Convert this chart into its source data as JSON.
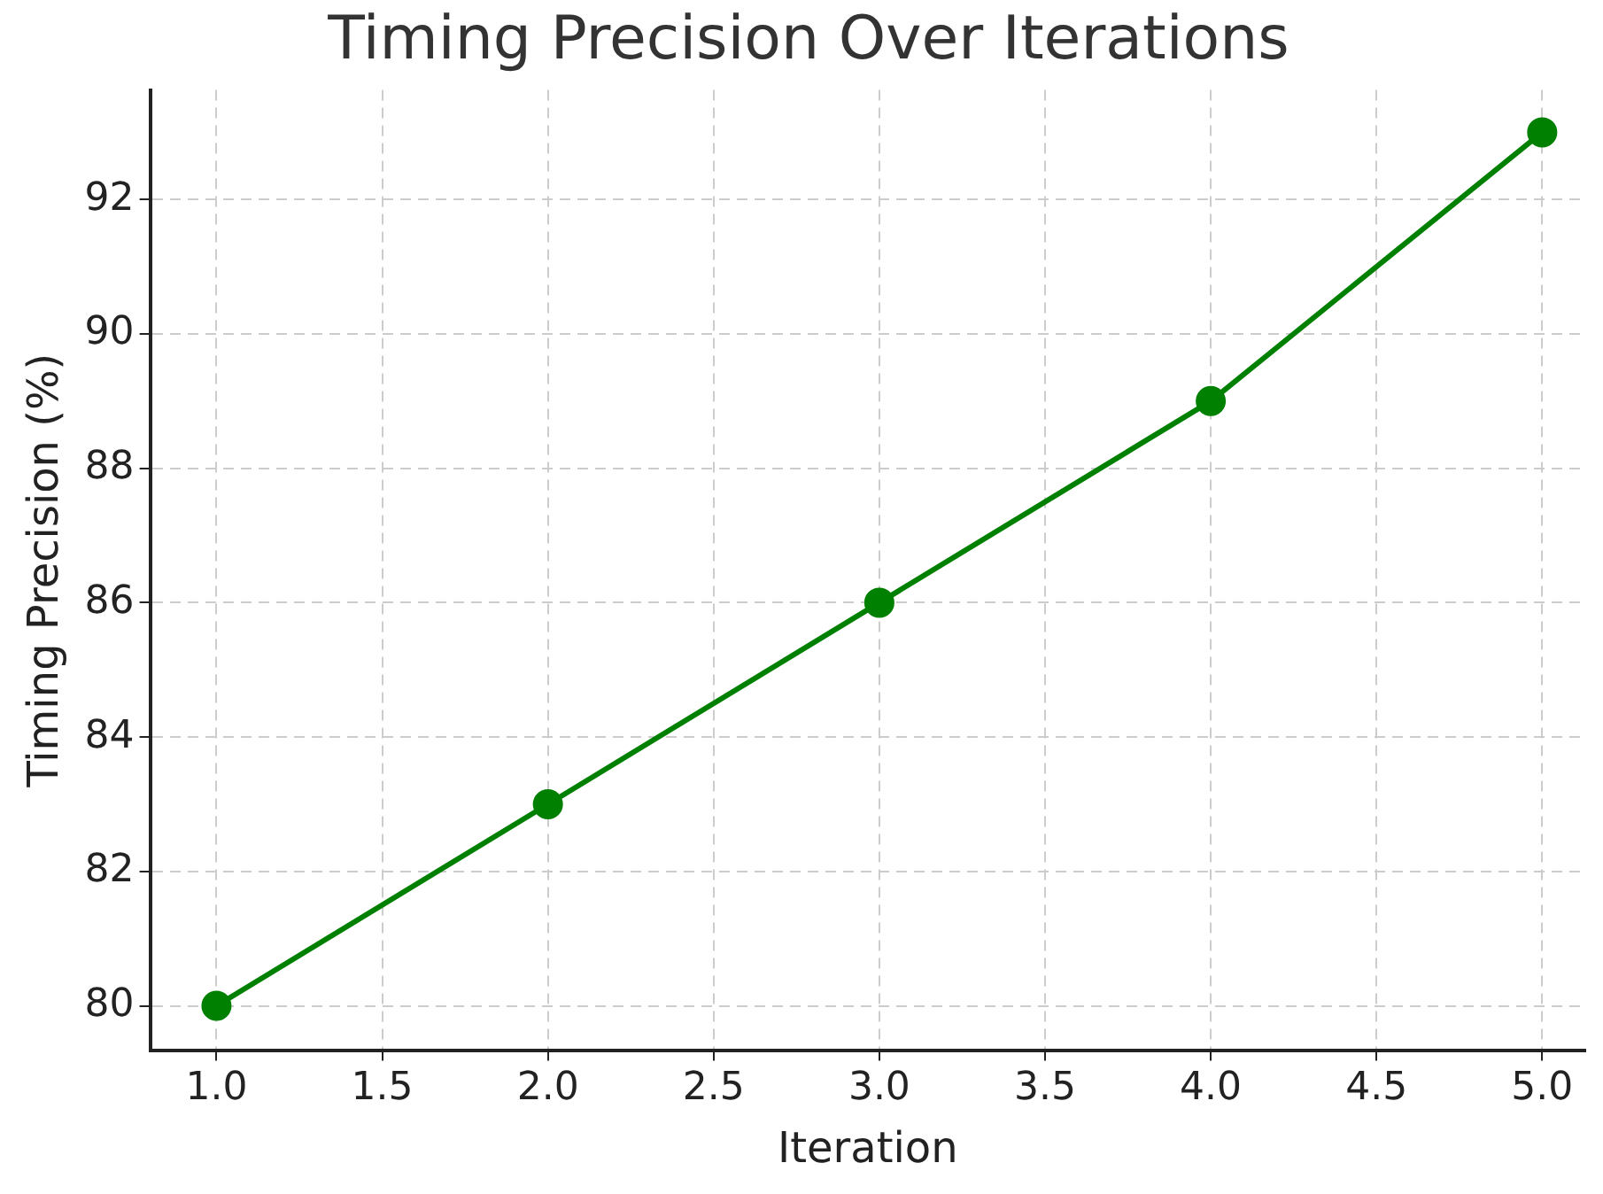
{
  "chart_data": {
    "type": "line",
    "title": "Timing Precision Over Iterations",
    "xlabel": "Iteration",
    "ylabel": "Timing Precision (%)",
    "x": [
      1,
      2,
      3,
      4,
      5
    ],
    "series": [
      {
        "color": "#008000",
        "values": [
          80,
          83,
          86,
          89,
          93
        ]
      }
    ],
    "xlim": [
      0.8,
      5.13
    ],
    "ylim": [
      79.34,
      93.63
    ],
    "xticks": [
      {
        "value": 1,
        "label": "1.0"
      },
      {
        "value": 1.5,
        "label": "1.5"
      },
      {
        "value": 2,
        "label": "2.0"
      },
      {
        "value": 2.5,
        "label": "2.5"
      },
      {
        "value": 3,
        "label": "3.0"
      },
      {
        "value": 3.5,
        "label": "3.5"
      },
      {
        "value": 4,
        "label": "4.0"
      },
      {
        "value": 4.5,
        "label": "4.5"
      },
      {
        "value": 5,
        "label": "5.0"
      }
    ],
    "yticks": [
      80,
      82,
      84,
      86,
      88,
      90,
      92
    ],
    "grid": true,
    "legend": false,
    "marker": "circle",
    "line_style": "solid"
  }
}
